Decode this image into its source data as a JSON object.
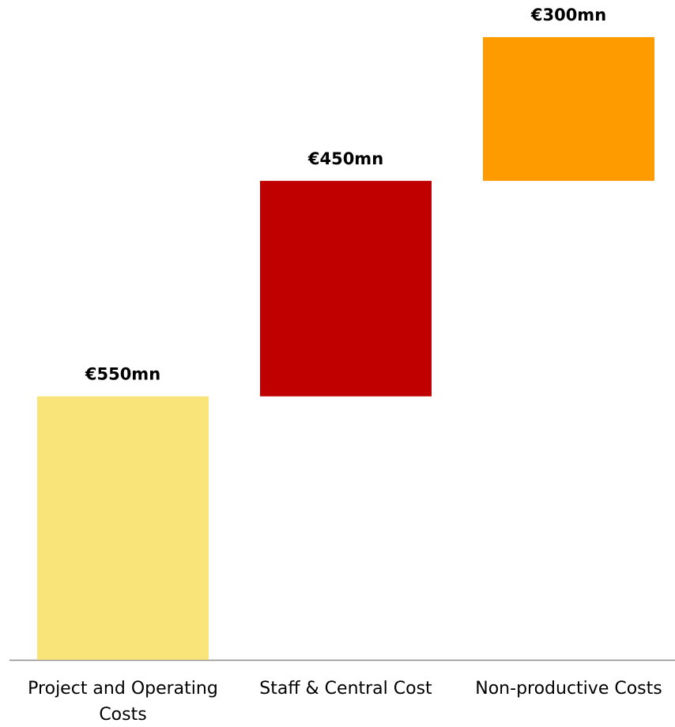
{
  "chart_data": {
    "type": "waterfall",
    "categories": [
      "Project and Operating Costs",
      "Staff & Central Cost",
      "Non-productive Costs"
    ],
    "values": [
      550,
      450,
      300
    ],
    "value_labels": [
      "€550mn",
      "€450mn",
      "€300mn"
    ],
    "colors": [
      "#f9e479",
      "#c00000",
      "#fd9b00"
    ]
  }
}
